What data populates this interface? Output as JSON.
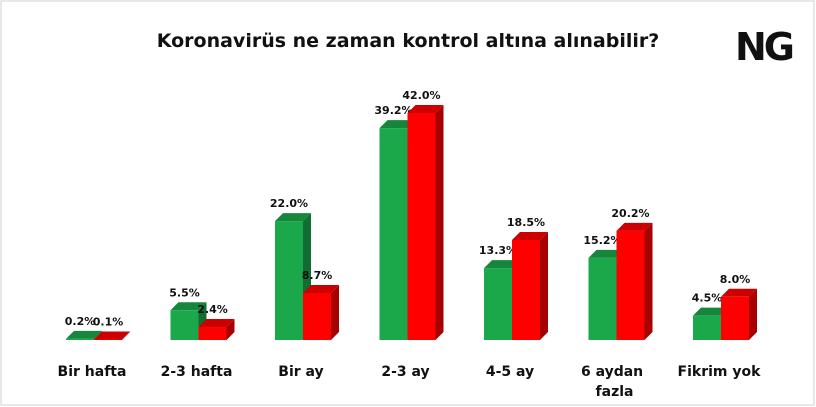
{
  "chart_data": {
    "type": "bar3d",
    "title": "Koronavirüs ne zaman kontrol altına alınabilir?",
    "logo": "NG",
    "categories": [
      "Bir hafta",
      "2-3 hafta",
      "Bir ay",
      "2-3 ay",
      "4-5 ay",
      "6 aydan fazla",
      "Fikrim yok"
    ],
    "series": [
      {
        "color": "#1aa84b",
        "values": [
          0.2,
          5.5,
          22.0,
          39.2,
          13.3,
          15.2,
          4.5
        ],
        "value_labels": [
          "0.2%",
          "5.5%",
          "22.0%",
          "39.2%",
          "13.3%",
          "15.2%",
          "4.5%"
        ]
      },
      {
        "color": "#ff0000",
        "values": [
          0.1,
          2.4,
          8.7,
          42.0,
          18.5,
          20.2,
          8.0
        ],
        "value_labels": [
          "0.1%",
          "2.4%",
          "8.7%",
          "42.0%",
          "18.5%",
          "20.2%",
          "8.0%"
        ]
      }
    ]
  }
}
